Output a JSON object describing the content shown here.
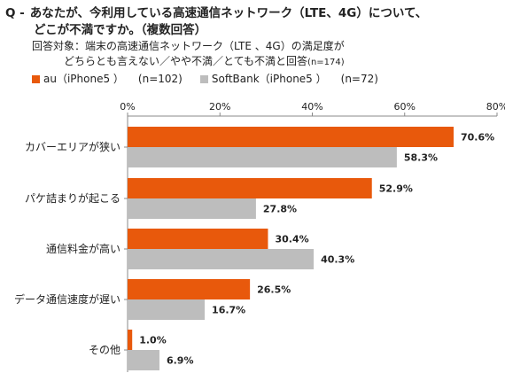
{
  "question": {
    "prefix": "Q -",
    "line1": "あなたが、今利用している高速通信ネットワーク（LTE、4G）について、",
    "line2": "どこが不満ですか。（複数回答）"
  },
  "subject": {
    "label": "回答対象：",
    "line1": "端末の高速通信ネットワーク（LTE 、4G）の満足度が",
    "line2": "どちらとも言えない／やや不満／とても不満と回答",
    "n": "(n=174)"
  },
  "legend": [
    {
      "name": "au（iPhone5 ）",
      "n": "(n=102)",
      "color": "#E8590C"
    },
    {
      "name": "SoftBank（iPhone5 ）",
      "n": "(n=72)",
      "color": "#BDBDBD"
    }
  ],
  "chart_data": {
    "type": "bar",
    "orientation": "horizontal",
    "categories": [
      "カバーエリアが狭い",
      "パケ詰まりが起こる",
      "通信料金が高い",
      "データ通信速度が遅い",
      "その他"
    ],
    "series": [
      {
        "name": "au（iPhone5 ）",
        "values": [
          70.6,
          52.9,
          30.4,
          26.5,
          1.0
        ],
        "labels": [
          "70.6%",
          "52.9%",
          "30.4%",
          "26.5%",
          "1.0%"
        ],
        "color": "#E8590C"
      },
      {
        "name": "SoftBank（iPhone5 ）",
        "values": [
          58.3,
          27.8,
          40.3,
          16.7,
          6.9
        ],
        "labels": [
          "58.3%",
          "27.8%",
          "40.3%",
          "16.7%",
          "6.9%"
        ],
        "color": "#BDBDBD"
      }
    ],
    "xlim": [
      0,
      80
    ],
    "ticks": [
      0,
      20,
      40,
      60,
      80
    ],
    "tick_labels": [
      "0%",
      "20%",
      "40%",
      "60%",
      "80%"
    ],
    "grid": false,
    "legend_position": "top-left"
  }
}
